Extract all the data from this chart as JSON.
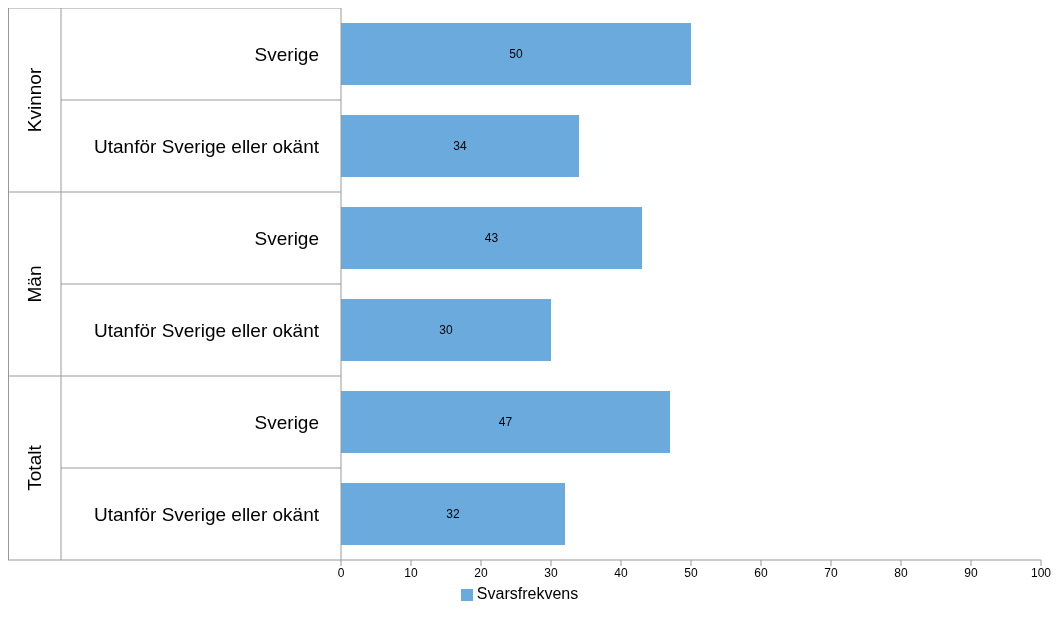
{
  "chart_data": {
    "type": "bar",
    "orientation": "horizontal",
    "categories": [
      "Sverige",
      "Utanför Sverige eller okänt",
      "Sverige",
      "Utanför Sverige eller okänt",
      "Sverige",
      "Utanför Sverige eller okänt"
    ],
    "annotations": [
      "Kvinnor",
      "Män",
      "Totalt"
    ],
    "series": [
      {
        "name": "Svarsfrekvens",
        "color": "#6aaadd",
        "values": [
          50,
          34,
          43,
          30,
          47,
          32
        ]
      }
    ],
    "xlim": [
      0,
      100
    ],
    "xticks": [
      0,
      10,
      20,
      30,
      40,
      50,
      60,
      70,
      80,
      90,
      100
    ],
    "data_labels": true,
    "legend": "bottom",
    "grid": false
  }
}
